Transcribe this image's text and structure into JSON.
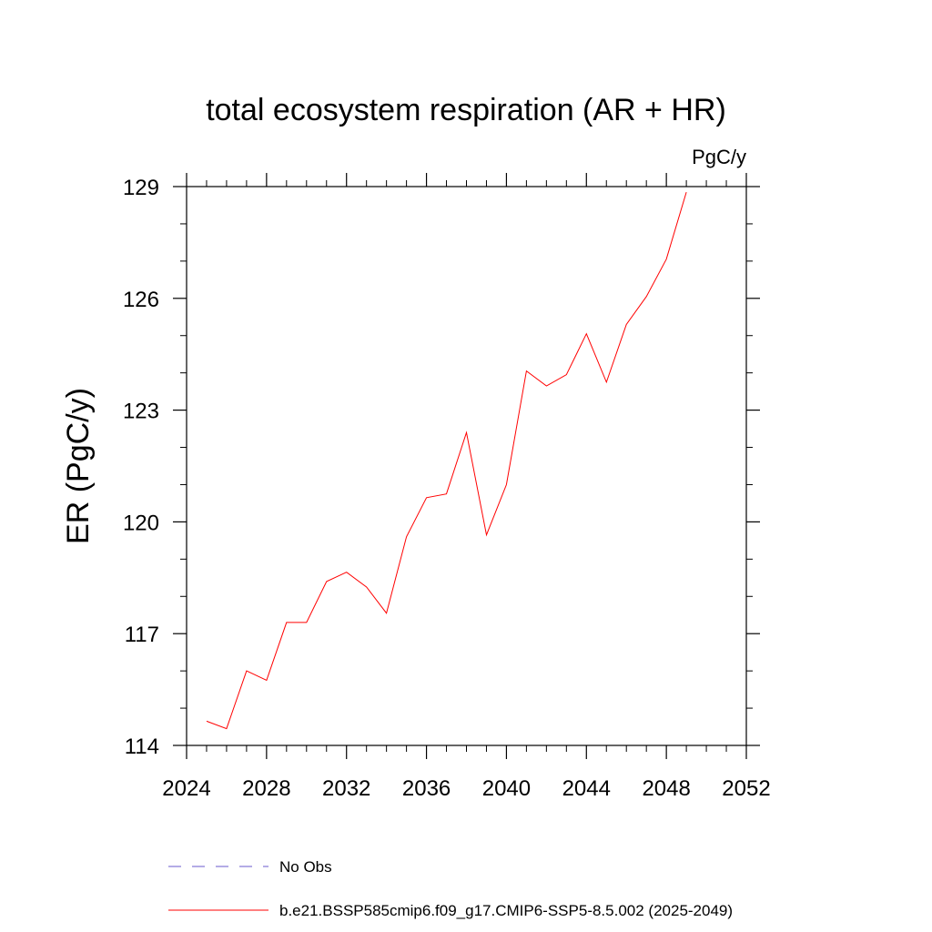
{
  "chart_data": {
    "type": "line",
    "title": "total ecosystem respiration (AR + HR)",
    "units": "PgC/y",
    "xlabel": "",
    "ylabel": "ER  (PgC/y)",
    "xlim": [
      2024,
      2052
    ],
    "ylim": [
      114,
      129
    ],
    "x_ticks": [
      2024,
      2028,
      2032,
      2036,
      2040,
      2044,
      2048,
      2052
    ],
    "x_tick_labels": [
      "2024",
      "2028",
      "2032",
      "2036",
      "2040",
      "2044",
      "2048",
      "2052"
    ],
    "y_ticks": [
      114,
      117,
      120,
      123,
      126,
      129
    ],
    "y_tick_labels": [
      "114",
      "117",
      "120",
      "123",
      "126",
      "129"
    ],
    "series": [
      {
        "name": "No Obs",
        "color": "#6a5acd",
        "style": "dashed",
        "x": [],
        "values": []
      },
      {
        "name": "b.e21.BSSP585cmip6.f09_g17.CMIP6-SSP5-8.5.002 (2025-2049)",
        "color": "#ff0000",
        "style": "solid",
        "x": [
          2025,
          2026,
          2027,
          2028,
          2029,
          2030,
          2031,
          2032,
          2033,
          2034,
          2035,
          2036,
          2037,
          2038,
          2039,
          2040,
          2041,
          2042,
          2043,
          2044,
          2045,
          2046,
          2047,
          2048,
          2049
        ],
        "values": [
          114.65,
          114.45,
          116.0,
          115.75,
          117.3,
          117.3,
          118.4,
          118.65,
          118.25,
          117.55,
          119.6,
          120.65,
          120.75,
          122.4,
          119.65,
          121.0,
          124.05,
          123.65,
          123.95,
          125.05,
          123.75,
          125.3,
          126.05,
          127.05,
          128.85
        ]
      }
    ],
    "legend_position": "bottom"
  }
}
